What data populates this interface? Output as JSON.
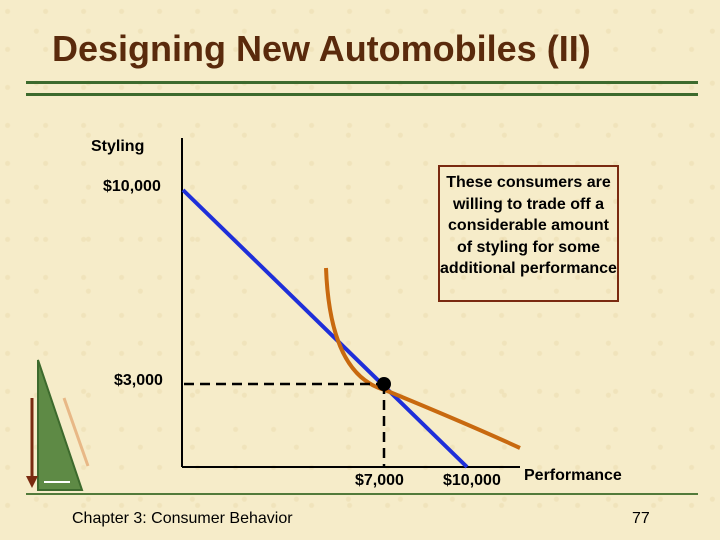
{
  "slide": {
    "title": "Designing New Automobiles (II)",
    "footer_left": "Chapter 3: Consumer Behavior",
    "page_number": "77",
    "callout": "These consumers are willing to trade off a considerable amount of styling for some additional performance"
  },
  "colors": {
    "title": "#5a2a0c",
    "budget_line": "#1f2fd9",
    "indifference_curve": "#c8690f",
    "rule": "#3d6a2d",
    "callout_border": "#7a2a10"
  },
  "chart_data": {
    "type": "line",
    "ylabel": "Styling",
    "xlabel": "Performance",
    "y_ticks": [
      "$10,000",
      "$3,000"
    ],
    "x_ticks": [
      "$7,000",
      "$10,000"
    ],
    "series": [
      {
        "kind": "budget-line",
        "points": [
          [
            0,
            10000
          ],
          [
            10000,
            0
          ]
        ]
      },
      {
        "kind": "indifference-curve",
        "points": [
          [
            4000,
            8500
          ],
          [
            5200,
            5200
          ],
          [
            7000,
            3000
          ],
          [
            9500,
            1200
          ],
          [
            11000,
            700
          ]
        ]
      }
    ],
    "optimum": {
      "x": 7000,
      "y": 3000
    }
  }
}
